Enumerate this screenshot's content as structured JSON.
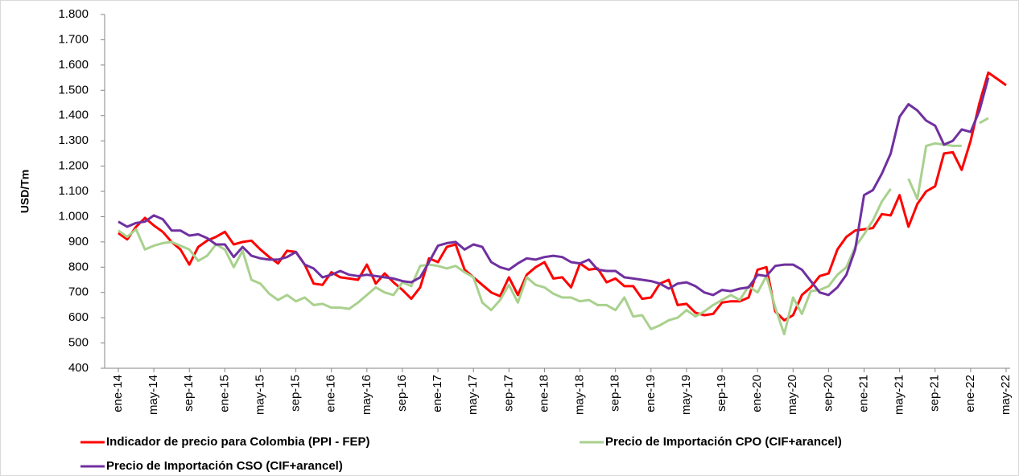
{
  "chart_data": {
    "type": "line",
    "y_label": "USD/Tm",
    "categories": [
      "ene-14",
      null,
      null,
      null,
      "may-14",
      null,
      null,
      null,
      "sep-14",
      null,
      null,
      null,
      "ene-15",
      null,
      null,
      null,
      "may-15",
      null,
      null,
      null,
      "sep-15",
      null,
      null,
      null,
      "ene-16",
      null,
      null,
      null,
      "may-16",
      null,
      null,
      null,
      "sep-16",
      null,
      null,
      null,
      "ene-17",
      null,
      null,
      null,
      "may-17",
      null,
      null,
      null,
      "sep-17",
      null,
      null,
      null,
      "ene-18",
      null,
      null,
      null,
      "may-18",
      null,
      null,
      null,
      "sep-18",
      null,
      null,
      null,
      "ene-19",
      null,
      null,
      null,
      "may-19",
      null,
      null,
      null,
      "sep-19",
      null,
      null,
      null,
      "ene-20",
      null,
      null,
      null,
      "may-20",
      null,
      null,
      null,
      "sep-20",
      null,
      null,
      null,
      "ene-21",
      null,
      null,
      null,
      "may-21",
      null,
      null,
      null,
      "sep-21",
      null,
      null,
      null,
      "ene-22",
      null,
      null,
      null,
      "may-22"
    ],
    "series": [
      {
        "name": "Indicador de precio para Colombia (PPI - FEP)",
        "color": "#ff0000",
        "values": [
          935,
          910,
          960,
          995,
          965,
          940,
          900,
          870,
          810,
          880,
          905,
          920,
          940,
          890,
          900,
          905,
          870,
          840,
          815,
          865,
          860,
          810,
          735,
          730,
          780,
          760,
          755,
          750,
          810,
          735,
          775,
          740,
          710,
          675,
          720,
          835,
          820,
          880,
          890,
          790,
          760,
          730,
          700,
          685,
          760,
          690,
          770,
          800,
          820,
          755,
          760,
          720,
          815,
          790,
          795,
          740,
          755,
          725,
          725,
          675,
          680,
          735,
          750,
          650,
          655,
          620,
          610,
          615,
          660,
          665,
          665,
          680,
          790,
          800,
          625,
          590,
          610,
          690,
          720,
          765,
          775,
          870,
          920,
          945,
          950,
          955,
          1010,
          1005,
          1085,
          960,
          1050,
          1100,
          1120,
          1250,
          1255,
          1185,
          1300,
          1450,
          1570,
          1545,
          1520
        ]
      },
      {
        "name": "Precio de Importación CPO (CIF+arancel)",
        "color": "#a9d18e",
        "values": [
          945,
          920,
          950,
          870,
          885,
          895,
          900,
          885,
          870,
          825,
          845,
          890,
          870,
          800,
          865,
          750,
          735,
          695,
          670,
          690,
          665,
          680,
          650,
          655,
          640,
          640,
          635,
          660,
          690,
          720,
          700,
          690,
          740,
          725,
          805,
          810,
          805,
          795,
          805,
          780,
          760,
          660,
          630,
          670,
          730,
          660,
          760,
          730,
          720,
          695,
          680,
          680,
          665,
          670,
          650,
          650,
          630,
          680,
          605,
          610,
          555,
          570,
          590,
          600,
          630,
          605,
          625,
          650,
          670,
          690,
          670,
          725,
          700,
          765,
          640,
          535,
          680,
          615,
          705,
          710,
          725,
          770,
          800,
          880,
          930,
          985,
          1060,
          1110,
          null,
          1150,
          1070,
          1280,
          1290,
          1285,
          1280,
          1280,
          null,
          1370,
          1390,
          null,
          null
        ]
      },
      {
        "name": "Precio de Importación CSO (CIF+arancel)",
        "color": "#7030a0",
        "values": [
          980,
          960,
          975,
          980,
          1005,
          990,
          945,
          945,
          925,
          930,
          915,
          890,
          890,
          840,
          880,
          845,
          835,
          830,
          830,
          840,
          860,
          810,
          795,
          760,
          770,
          785,
          770,
          765,
          770,
          765,
          760,
          755,
          745,
          740,
          760,
          820,
          885,
          895,
          900,
          870,
          890,
          880,
          820,
          800,
          790,
          815,
          835,
          830,
          840,
          845,
          840,
          820,
          815,
          830,
          790,
          785,
          785,
          760,
          755,
          750,
          745,
          735,
          715,
          735,
          740,
          725,
          700,
          690,
          710,
          705,
          715,
          720,
          770,
          765,
          805,
          810,
          810,
          790,
          745,
          700,
          690,
          720,
          770,
          870,
          1085,
          1105,
          1170,
          1250,
          1395,
          1445,
          1420,
          1380,
          1360,
          1285,
          1300,
          1345,
          1335,
          1420,
          1550,
          null,
          null
        ]
      }
    ],
    "ylim": [
      400,
      1800
    ],
    "yticks": [
      400,
      500,
      600,
      700,
      800,
      900,
      {
        "value": 1000,
        "label": "1.000"
      },
      {
        "value": 1100,
        "label": "1.100"
      },
      {
        "value": 1200,
        "label": "1.200"
      },
      {
        "value": 1300,
        "label": "1.300"
      },
      {
        "value": 1400,
        "label": "1.400"
      },
      {
        "value": 1500,
        "label": "1.500"
      },
      {
        "value": 1600,
        "label": "1.600"
      },
      {
        "value": 1700,
        "label": "1.700"
      },
      {
        "value": 1800,
        "label": "1.800"
      }
    ],
    "grid": false
  }
}
